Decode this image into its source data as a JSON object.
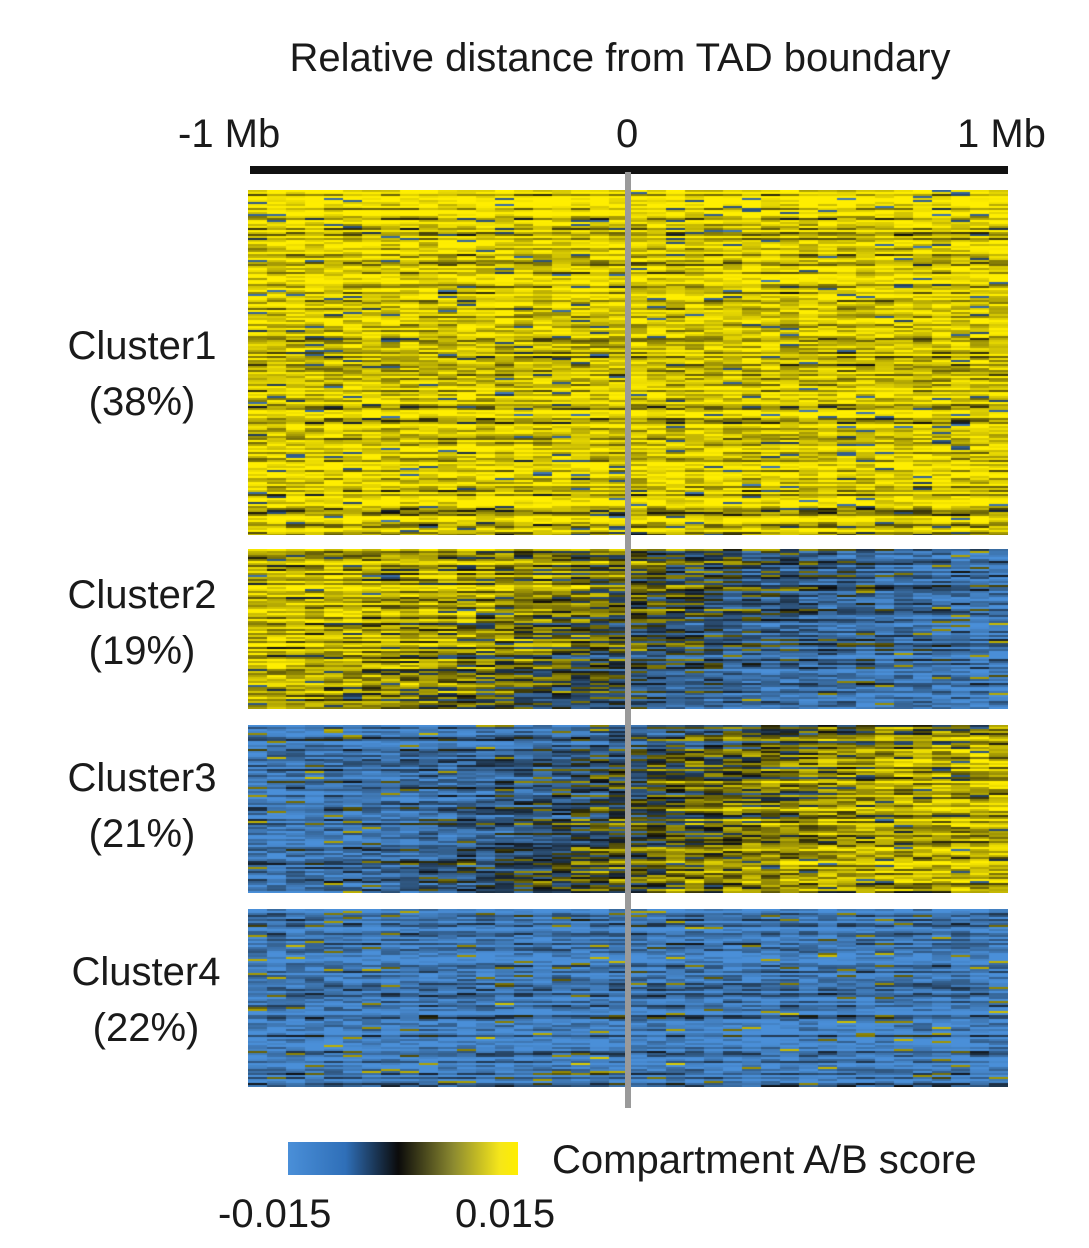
{
  "chart_data": {
    "type": "heatmap",
    "title": "Relative distance from TAD boundary",
    "x_ticks": [
      "-1 Mb",
      "0",
      "1 Mb"
    ],
    "xlim_mb": [
      -1,
      1
    ],
    "boundary_x_mb": 0,
    "clusters": [
      {
        "name": "Cluster1",
        "percent": "(38%)",
        "left_pattern": "A",
        "right_pattern": "A"
      },
      {
        "name": "Cluster2",
        "percent": "(19%)",
        "left_pattern": "A",
        "right_pattern": "B"
      },
      {
        "name": "Cluster3",
        "percent": "(21%)",
        "left_pattern": "B",
        "right_pattern": "A"
      },
      {
        "name": "Cluster4",
        "percent": "(22%)",
        "left_pattern": "B",
        "right_pattern": "B"
      }
    ],
    "colorbar": {
      "label": "Compartment A/B score",
      "min_label": "-0.015",
      "max_label": "0.015",
      "range": [
        -0.015,
        0.015
      ],
      "colors": [
        "#4a8fd8",
        "#0b0b0b",
        "#ffee00"
      ]
    }
  }
}
